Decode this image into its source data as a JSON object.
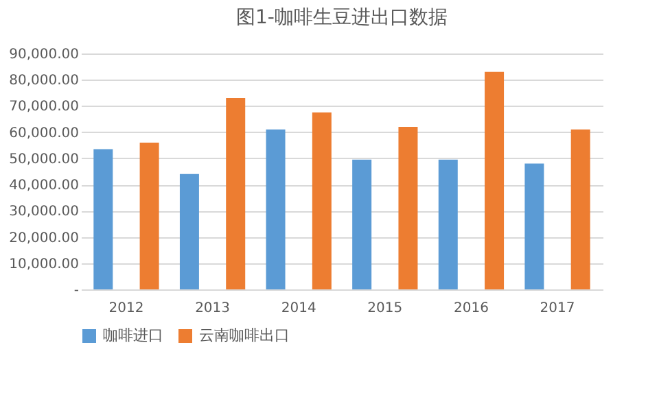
{
  "chart_data": {
    "type": "bar",
    "title": "图1-咖啡生豆进出口数据",
    "categories": [
      "2012",
      "2013",
      "2014",
      "2015",
      "2016",
      "2017"
    ],
    "series": [
      {
        "name": "咖啡进口",
        "color": "#5b9bd5",
        "values": [
          53500,
          44000,
          61000,
          49500,
          49500,
          48000
        ]
      },
      {
        "name": "云南咖啡出口",
        "color": "#ed7d31",
        "values": [
          56000,
          73000,
          67500,
          62000,
          83000,
          61000
        ]
      }
    ],
    "ylim": [
      0,
      90000
    ],
    "yticks": [
      {
        "value": 0,
        "label": "-"
      },
      {
        "value": 10000,
        "label": "10,000.00"
      },
      {
        "value": 20000,
        "label": "20,000.00"
      },
      {
        "value": 30000,
        "label": "30,000.00"
      },
      {
        "value": 40000,
        "label": "40,000.00"
      },
      {
        "value": 50000,
        "label": "50,000.00"
      },
      {
        "value": 60000,
        "label": "60,000.00"
      },
      {
        "value": 70000,
        "label": "70,000.00"
      },
      {
        "value": 80000,
        "label": "80,000.00"
      },
      {
        "value": 90000,
        "label": "90,000.00"
      }
    ],
    "grid": "y",
    "legend": "bottom"
  }
}
